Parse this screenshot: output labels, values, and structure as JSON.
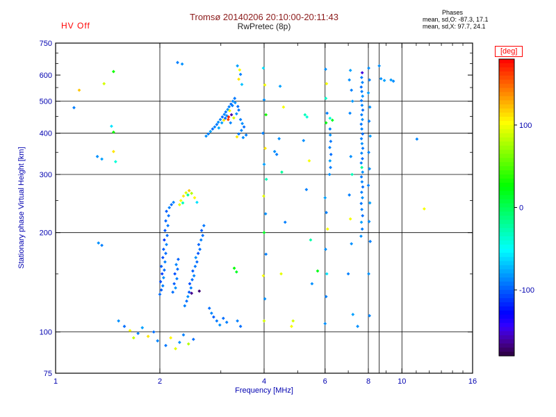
{
  "header": {
    "hv_status": "HV Off",
    "title": "Tromsø 20140206 20:10:00-20:11:43",
    "subtitle": "RwPretec (8p)",
    "phases_title": "Phases",
    "phases_o": "mean, sd,O: -87.3, 17.1",
    "phases_x": "mean, sd,X:  97.7, 24.1"
  },
  "colors": {
    "background": "#ffffff",
    "axis_text": "#0000b0",
    "frame": "#000000",
    "grid": "#000000",
    "title": "#8b1a1a",
    "subtitle": "#222222",
    "hv_status": "#ff0000",
    "phases_text": "#000000",
    "deg_label": "#ff0000"
  },
  "chart_data": {
    "type": "scatter",
    "title": "Tromsø 20140206 20:10:00-20:11:43",
    "subtitle": "RwPretec (8p)",
    "xlabel": "Frequency [MHz]",
    "ylabel": "Stationary phase Virtual Height [km]",
    "x_scale": "log",
    "y_scale": "log",
    "xlim": [
      1,
      16
    ],
    "ylim": [
      75,
      750
    ],
    "x_ticks": [
      1,
      2,
      4,
      6,
      8,
      10,
      16
    ],
    "y_ticks": [
      75,
      100,
      200,
      300,
      400,
      500,
      600,
      750
    ],
    "x_minor_ticks": [
      3,
      5,
      7,
      9,
      11,
      12,
      13,
      14,
      15
    ],
    "y_minor_ticks": [
      150,
      250,
      350,
      450,
      550,
      650,
      700
    ],
    "x_gridlines": [
      2,
      4,
      6,
      8,
      8.6,
      10
    ],
    "y_gridlines": [
      100,
      200,
      300,
      400,
      500
    ],
    "grid": true,
    "legend": "colorbar-right",
    "colorbar": {
      "label": "[deg]",
      "ticks": [
        100,
        0,
        -100
      ],
      "range": [
        -180,
        180
      ]
    },
    "point_units": [
      "MHz",
      "km",
      "deg"
    ],
    "points": [
      [
        2.0,
        130,
        -95
      ],
      [
        2.02,
        134,
        -100
      ],
      [
        2.04,
        138,
        -90
      ],
      [
        2.01,
        142,
        -105
      ],
      [
        2.05,
        146,
        -85
      ],
      [
        2.03,
        150,
        -110
      ],
      [
        2.06,
        154,
        -95
      ],
      [
        2.02,
        158,
        -100
      ],
      [
        2.07,
        163,
        -90
      ],
      [
        2.04,
        168,
        -105
      ],
      [
        2.08,
        173,
        -95
      ],
      [
        2.05,
        178,
        -100
      ],
      [
        2.09,
        184,
        -88
      ],
      [
        2.06,
        190,
        -112
      ],
      [
        2.1,
        196,
        -95
      ],
      [
        2.07,
        203,
        -102
      ],
      [
        2.11,
        210,
        -92
      ],
      [
        2.08,
        217,
        -98
      ],
      [
        2.12,
        225,
        -94
      ],
      [
        2.09,
        232,
        -100
      ],
      [
        2.13,
        238,
        -90
      ],
      [
        2.16,
        243,
        -96
      ],
      [
        2.19,
        247,
        -88
      ],
      [
        2.18,
        132,
        -95
      ],
      [
        2.22,
        136,
        -85
      ],
      [
        2.2,
        140,
        -100
      ],
      [
        2.24,
        145,
        -90
      ],
      [
        2.21,
        150,
        -105
      ],
      [
        2.25,
        155,
        -95
      ],
      [
        2.23,
        160,
        -88
      ],
      [
        2.26,
        166,
        -98
      ],
      [
        2.36,
        120,
        -90
      ],
      [
        2.39,
        124,
        -95
      ],
      [
        2.41,
        128,
        -85
      ],
      [
        2.43,
        132,
        -100
      ],
      [
        2.46,
        136,
        -90
      ],
      [
        2.44,
        140,
        -105
      ],
      [
        2.48,
        144,
        -95
      ],
      [
        2.51,
        148,
        -88
      ],
      [
        2.49,
        153,
        -100
      ],
      [
        2.53,
        158,
        -92
      ],
      [
        2.56,
        163,
        -96
      ],
      [
        2.54,
        168,
        -85
      ],
      [
        2.58,
        173,
        -102
      ],
      [
        2.61,
        178,
        -94
      ],
      [
        2.59,
        184,
        -98
      ],
      [
        2.63,
        190,
        -90
      ],
      [
        2.66,
        196,
        -95
      ],
      [
        2.64,
        203,
        -100
      ],
      [
        2.68,
        210,
        -92
      ],
      [
        2.3,
        250,
        100
      ],
      [
        2.34,
        258,
        110
      ],
      [
        2.38,
        264,
        90
      ],
      [
        2.43,
        268,
        120
      ],
      [
        2.47,
        263,
        80
      ],
      [
        2.52,
        255,
        105
      ],
      [
        2.28,
        243,
        95
      ],
      [
        2.56,
        247,
        -60
      ],
      [
        2.33,
        246,
        -30
      ],
      [
        2.41,
        260,
        -20
      ],
      [
        2.78,
        118,
        -95
      ],
      [
        2.82,
        114,
        -88
      ],
      [
        2.86,
        111,
        -100
      ],
      [
        2.92,
        108,
        -92
      ],
      [
        2.98,
        105,
        -85
      ],
      [
        3.05,
        110,
        -95
      ],
      [
        3.12,
        107,
        -90
      ],
      [
        3.35,
        108,
        -90
      ],
      [
        3.42,
        104,
        -95
      ],
      [
        1.52,
        108,
        -85
      ],
      [
        1.58,
        104,
        -95
      ],
      [
        1.64,
        101,
        100
      ],
      [
        1.68,
        96,
        85
      ],
      [
        1.73,
        99,
        -90
      ],
      [
        1.78,
        103,
        -80
      ],
      [
        1.85,
        97,
        110
      ],
      [
        1.92,
        100,
        -95
      ],
      [
        1.97,
        94,
        -88
      ],
      [
        2.08,
        91,
        -92
      ],
      [
        2.15,
        96,
        105
      ],
      [
        2.22,
        89,
        95
      ],
      [
        2.28,
        93,
        -85
      ],
      [
        2.34,
        98,
        -90
      ],
      [
        2.42,
        92,
        80
      ],
      [
        2.5,
        95,
        -95
      ],
      [
        2.72,
        392,
        -85
      ],
      [
        2.76,
        398,
        -90
      ],
      [
        2.8,
        405,
        -80
      ],
      [
        2.84,
        412,
        -95
      ],
      [
        2.88,
        418,
        -88
      ],
      [
        2.92,
        425,
        -92
      ],
      [
        2.95,
        432,
        -85
      ],
      [
        2.99,
        440,
        -90
      ],
      [
        3.03,
        448,
        -95
      ],
      [
        3.07,
        456,
        -88
      ],
      [
        3.1,
        464,
        -92
      ],
      [
        3.14,
        472,
        -85
      ],
      [
        3.17,
        481,
        -90
      ],
      [
        3.21,
        490,
        -95
      ],
      [
        3.25,
        500,
        -88
      ],
      [
        3.29,
        510,
        -92
      ],
      [
        3.02,
        430,
        -80
      ],
      [
        3.06,
        438,
        110
      ],
      [
        3.12,
        452,
        -85
      ],
      [
        3.18,
        468,
        100
      ],
      [
        3.24,
        485,
        -90
      ],
      [
        3.15,
        440,
        160
      ],
      [
        3.2,
        430,
        -88
      ],
      [
        3.27,
        445,
        90
      ],
      [
        3.33,
        458,
        -85
      ],
      [
        3.38,
        470,
        -92
      ],
      [
        3.3,
        495,
        -86
      ],
      [
        3.36,
        482,
        -94
      ],
      [
        3.42,
        440,
        -90
      ],
      [
        3.46,
        428,
        -85
      ],
      [
        3.5,
        418,
        -95
      ],
      [
        3.44,
        408,
        -88
      ],
      [
        3.38,
        398,
        -92
      ],
      [
        3.34,
        390,
        110
      ],
      [
        3.48,
        388,
        -86
      ],
      [
        3.55,
        395,
        -90
      ],
      [
        3.16,
        448,
        170
      ],
      [
        3.22,
        455,
        -160
      ],
      [
        2.96,
        415,
        -78
      ],
      [
        3.09,
        444,
        -96
      ],
      [
        7.62,
        195,
        -85
      ],
      [
        7.68,
        205,
        -90
      ],
      [
        7.64,
        215,
        -80
      ],
      [
        7.7,
        225,
        -95
      ],
      [
        7.66,
        235,
        -88
      ],
      [
        7.63,
        245,
        -92
      ],
      [
        7.69,
        255,
        -85
      ],
      [
        7.65,
        265,
        -90
      ],
      [
        7.71,
        275,
        -95
      ],
      [
        7.67,
        285,
        -88
      ],
      [
        7.64,
        295,
        -92
      ],
      [
        7.7,
        305,
        -85
      ],
      [
        7.66,
        315,
        -20
      ],
      [
        7.63,
        325,
        -90
      ],
      [
        7.69,
        335,
        -95
      ],
      [
        7.65,
        348,
        -88
      ],
      [
        7.71,
        360,
        -92
      ],
      [
        7.67,
        372,
        -85
      ],
      [
        7.64,
        385,
        -90
      ],
      [
        7.7,
        398,
        -95
      ],
      [
        7.66,
        412,
        -88
      ],
      [
        7.63,
        426,
        -92
      ],
      [
        7.69,
        440,
        -85
      ],
      [
        7.65,
        455,
        -90
      ],
      [
        7.71,
        470,
        -95
      ],
      [
        7.67,
        486,
        -88
      ],
      [
        7.64,
        502,
        -92
      ],
      [
        7.7,
        518,
        -85
      ],
      [
        7.66,
        535,
        -90
      ],
      [
        7.63,
        552,
        -95
      ],
      [
        7.69,
        570,
        -88
      ],
      [
        7.65,
        590,
        -92
      ],
      [
        7.68,
        610,
        -150
      ],
      [
        6.18,
        300,
        -85
      ],
      [
        6.22,
        315,
        -90
      ],
      [
        6.2,
        330,
        -80
      ],
      [
        6.24,
        345,
        -95
      ],
      [
        6.19,
        362,
        -88
      ],
      [
        6.23,
        378,
        -92
      ],
      [
        6.21,
        395,
        -85
      ],
      [
        6.2,
        412,
        -90
      ],
      [
        6.2,
        444,
        -40
      ],
      [
        6.3,
        438,
        15
      ],
      [
        6.02,
        625,
        -85
      ],
      [
        6.06,
        565,
        100
      ],
      [
        6.03,
        510,
        -35
      ],
      [
        6.08,
        460,
        -90
      ],
      [
        6.04,
        430,
        20
      ],
      [
        6.0,
        255,
        -80
      ],
      [
        6.05,
        230,
        -90
      ],
      [
        6.1,
        205,
        100
      ],
      [
        6.02,
        178,
        -85
      ],
      [
        6.07,
        150,
        -60
      ],
      [
        6.04,
        128,
        -90
      ],
      [
        6.0,
        106,
        -85
      ],
      [
        3.98,
        630,
        -60
      ],
      [
        4.02,
        560,
        100
      ],
      [
        4.0,
        505,
        -85
      ],
      [
        4.05,
        455,
        30
      ],
      [
        3.97,
        400,
        -90
      ],
      [
        4.03,
        360,
        110
      ],
      [
        4.0,
        322,
        -80
      ],
      [
        4.06,
        290,
        -30
      ],
      [
        3.99,
        258,
        95
      ],
      [
        4.04,
        228,
        -85
      ],
      [
        4.0,
        200,
        15
      ],
      [
        4.05,
        172,
        -90
      ],
      [
        3.98,
        148,
        100
      ],
      [
        4.02,
        126,
        -85
      ],
      [
        4.0,
        108,
        90
      ],
      [
        4.45,
        555,
        -80
      ],
      [
        4.55,
        480,
        100
      ],
      [
        4.42,
        385,
        -85
      ],
      [
        4.5,
        305,
        -20
      ],
      [
        4.6,
        215,
        -90
      ],
      [
        4.48,
        150,
        95
      ],
      [
        5.25,
        455,
        -30
      ],
      [
        5.32,
        448,
        -40
      ],
      [
        5.2,
        380,
        -85
      ],
      [
        5.4,
        330,
        100
      ],
      [
        5.3,
        270,
        -90
      ],
      [
        5.45,
        190,
        -25
      ],
      [
        5.5,
        140,
        -85
      ],
      [
        4.8,
        104,
        100
      ],
      [
        4.85,
        108,
        90
      ],
      [
        7.1,
        620,
        -80
      ],
      [
        7.05,
        580,
        -85
      ],
      [
        7.15,
        540,
        -90
      ],
      [
        7.2,
        500,
        -82
      ],
      [
        7.08,
        460,
        -88
      ],
      [
        7.22,
        113,
        -80
      ],
      [
        7.0,
        150,
        -90
      ],
      [
        7.12,
        340,
        -85
      ],
      [
        7.18,
        300,
        -30
      ],
      [
        7.05,
        260,
        -90
      ],
      [
        7.1,
        220,
        100
      ],
      [
        7.15,
        185,
        -85
      ],
      [
        8.02,
        630,
        -85
      ],
      [
        8.06,
        580,
        -90
      ],
      [
        8.0,
        530,
        -80
      ],
      [
        8.08,
        480,
        -85
      ],
      [
        8.04,
        435,
        -90
      ],
      [
        8.1,
        392,
        -82
      ],
      [
        8.02,
        350,
        -88
      ],
      [
        8.06,
        312,
        -85
      ],
      [
        8.0,
        278,
        -90
      ],
      [
        8.08,
        246,
        -80
      ],
      [
        8.04,
        216,
        -85
      ],
      [
        8.1,
        188,
        -90
      ],
      [
        8.02,
        150,
        -84
      ],
      [
        8.06,
        112,
        -88
      ],
      [
        1.38,
        565,
        90
      ],
      [
        1.47,
        615,
        30
      ],
      [
        2.25,
        655,
        -90
      ],
      [
        2.32,
        648,
        -85
      ],
      [
        3.35,
        640,
        -80
      ],
      [
        3.4,
        622,
        100
      ],
      [
        3.42,
        603,
        -90
      ],
      [
        3.38,
        583,
        110
      ],
      [
        3.45,
        562,
        -70
      ],
      [
        8.6,
        640,
        -85
      ],
      [
        8.7,
        585,
        -85
      ],
      [
        8.9,
        578,
        -80
      ],
      [
        11.05,
        384,
        -88
      ],
      [
        11.6,
        236,
        100
      ],
      [
        9.3,
        580,
        -82
      ],
      [
        9.45,
        575,
        -86
      ],
      [
        1.17,
        540,
        120
      ],
      [
        1.13,
        478,
        -90
      ],
      [
        1.32,
        340,
        -85
      ],
      [
        1.36,
        334,
        -80
      ],
      [
        1.47,
        352,
        110
      ],
      [
        1.49,
        328,
        -40
      ],
      [
        1.45,
        420,
        -60
      ],
      [
        1.33,
        186,
        -85
      ],
      [
        1.36,
        183,
        -90
      ],
      [
        1.47,
        403,
        30
      ],
      [
        3.28,
        156,
        25
      ],
      [
        3.33,
        152,
        15
      ],
      [
        5.71,
        153,
        20
      ],
      [
        2.47,
        131,
        -165
      ],
      [
        4.29,
        352,
        -85
      ],
      [
        4.35,
        345,
        -90
      ],
      [
        2.6,
        133,
        -170
      ],
      [
        7.45,
        104,
        -85
      ]
    ]
  }
}
